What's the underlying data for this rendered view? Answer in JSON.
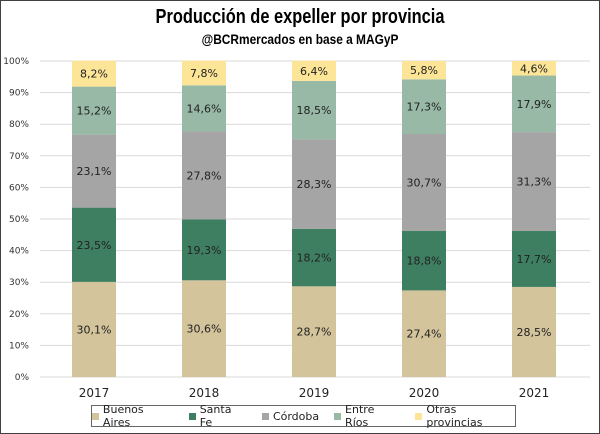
{
  "chart_data": {
    "type": "bar",
    "stacked": true,
    "title": "Producción de expeller por provincia",
    "subtitle": "@BCRmercados en base a MAGyP",
    "xlabel": "",
    "ylabel": "",
    "ylim": [
      0,
      100
    ],
    "y_ticks": [
      "0%",
      "10%",
      "20%",
      "30%",
      "40%",
      "50%",
      "60%",
      "70%",
      "80%",
      "90%",
      "100%"
    ],
    "grid": true,
    "legend_position": "bottom",
    "categories": [
      "2017",
      "2018",
      "2019",
      "2020",
      "2021"
    ],
    "series": [
      {
        "name": "Buenos Aires",
        "color": "#d3c49c",
        "values": [
          30.1,
          30.6,
          28.7,
          27.4,
          28.5
        ],
        "labels": [
          "30,1%",
          "30,6%",
          "28,7%",
          "27,4%",
          "28,5%"
        ]
      },
      {
        "name": "Santa Fe",
        "color": "#3e7f62",
        "values": [
          23.5,
          19.3,
          18.2,
          18.8,
          17.7
        ],
        "labels": [
          "23,5%",
          "19,3%",
          "18,2%",
          "18,8%",
          "17,7%"
        ]
      },
      {
        "name": "Córdoba",
        "color": "#a5a5a5",
        "values": [
          23.1,
          27.8,
          28.3,
          30.7,
          31.3
        ],
        "labels": [
          "23,1%",
          "27,8%",
          "28,3%",
          "30,7%",
          "31,3%"
        ]
      },
      {
        "name": "Entre Ríos",
        "color": "#97b9a6",
        "values": [
          15.2,
          14.6,
          18.5,
          17.3,
          17.9
        ],
        "labels": [
          "15,2%",
          "14,6%",
          "18,5%",
          "17,3%",
          "17,9%"
        ]
      },
      {
        "name": "Otras provincias",
        "color": "#fde598",
        "values": [
          8.2,
          7.8,
          6.4,
          5.8,
          4.6
        ],
        "labels": [
          "8,2%",
          "7,8%",
          "6,4%",
          "5,8%",
          "4,6%"
        ]
      }
    ]
  }
}
